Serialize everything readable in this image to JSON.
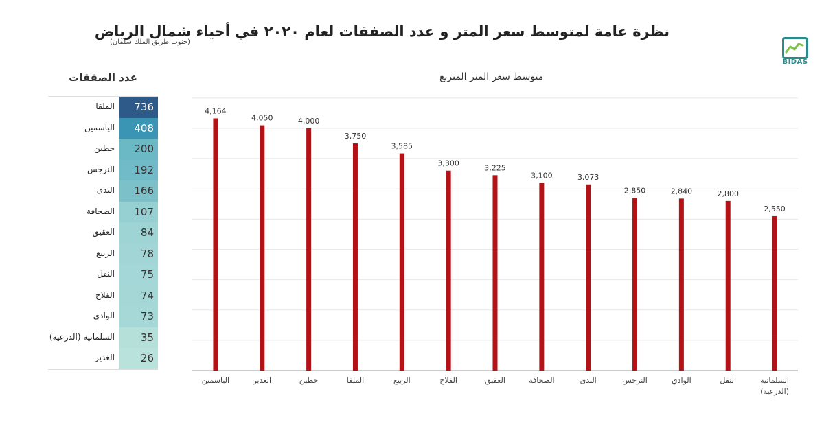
{
  "header": {
    "title": "نظرة عامة لمتوسط سعر المتر و عدد الصفقات لعام ٢٠٢٠ في أحياء شمال الرياض",
    "subtitle": "(جنوب طريق الملك سلمان)",
    "logo_text": "BIDAS"
  },
  "table": {
    "title": "عدد الصفقات",
    "rows": [
      {
        "name": "الملقا",
        "value": "736",
        "color": "#2e5a8a"
      },
      {
        "name": "الياسمين",
        "value": "408",
        "color": "#3a94b4"
      },
      {
        "name": "حطين",
        "value": "200",
        "color": "#6cb9c6"
      },
      {
        "name": "النرجس",
        "value": "192",
        "color": "#70bbc7"
      },
      {
        "name": "الندى",
        "value": "166",
        "color": "#7cc1ca"
      },
      {
        "name": "الصحافة",
        "value": "107",
        "color": "#97d0d2"
      },
      {
        "name": "العقيق",
        "value": "84",
        "color": "#9fd4d5"
      },
      {
        "name": "الربيع",
        "value": "78",
        "color": "#a2d6d6"
      },
      {
        "name": "النفل",
        "value": "75",
        "color": "#a4d7d7"
      },
      {
        "name": "الفلاح",
        "value": "74",
        "color": "#a5d7d7"
      },
      {
        "name": "الوادي",
        "value": "73",
        "color": "#a6d8d8"
      },
      {
        "name": "السلمانية (الدرعية)",
        "value": "35",
        "color": "#b5e0da"
      },
      {
        "name": "الغدير",
        "value": "26",
        "color": "#b9e2dc"
      }
    ]
  },
  "chart_data": {
    "type": "bar",
    "title": "متوسط سعر المتر المتربع",
    "categories": [
      "الياسمين",
      "الغدير",
      "حطين",
      "الملقا",
      "الربيع",
      "الفلاح",
      "العقيق",
      "الصحافة",
      "الندى",
      "النرجس",
      "الوادي",
      "النفل",
      "السلمانية (الدرعية)"
    ],
    "values": [
      4164,
      4050,
      4000,
      3750,
      3585,
      3300,
      3225,
      3100,
      3073,
      2850,
      2840,
      2800,
      2550
    ],
    "value_labels": [
      "4,164",
      "4,050",
      "4,000",
      "3,750",
      "3,585",
      "3,300",
      "3,225",
      "3,100",
      "3,073",
      "2,850",
      "2,840",
      "2,800",
      "2,550"
    ],
    "ylim": [
      0,
      4600
    ],
    "grid": true,
    "bar_color": "#b31217"
  }
}
